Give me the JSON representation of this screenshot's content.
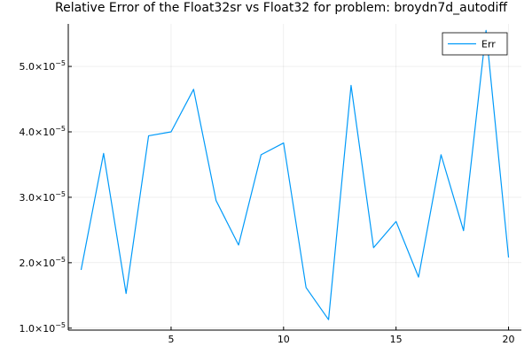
{
  "chart_data": {
    "type": "line",
    "title": "Relative Error of the Float32sr vs Float32 for problem: broydn7d_autodiff",
    "xlabel": "",
    "ylabel": "",
    "xlim": [
      0.43,
      20.57
    ],
    "ylim": [
      9.7e-06,
      5.65e-05
    ],
    "grid": true,
    "legend_position": "top-right",
    "x_ticks": [
      {
        "value": 5,
        "label": "5"
      },
      {
        "value": 10,
        "label": "10"
      },
      {
        "value": 15,
        "label": "15"
      },
      {
        "value": 20,
        "label": "20"
      }
    ],
    "y_ticks": [
      {
        "value": 1e-05,
        "base": "1.0×10",
        "exp": "−5"
      },
      {
        "value": 2e-05,
        "base": "2.0×10",
        "exp": "−5"
      },
      {
        "value": 3e-05,
        "base": "3.0×10",
        "exp": "−5"
      },
      {
        "value": 4e-05,
        "base": "4.0×10",
        "exp": "−5"
      },
      {
        "value": 5e-05,
        "base": "5.0×10",
        "exp": "−5"
      }
    ],
    "series": [
      {
        "name": "Err",
        "color": "#009af9",
        "x": [
          1,
          2,
          3,
          4,
          5,
          6,
          7,
          8,
          9,
          10,
          11,
          12,
          13,
          14,
          15,
          16,
          17,
          18,
          19,
          20
        ],
        "y": [
          1.89e-05,
          3.67e-05,
          1.53e-05,
          3.94e-05,
          4e-05,
          4.65e-05,
          2.95e-05,
          2.27e-05,
          3.65e-05,
          3.83e-05,
          1.62e-05,
          1.13e-05,
          4.71e-05,
          2.23e-05,
          2.63e-05,
          1.78e-05,
          3.65e-05,
          2.49e-05,
          5.55e-05,
          2.08e-05
        ]
      }
    ]
  }
}
